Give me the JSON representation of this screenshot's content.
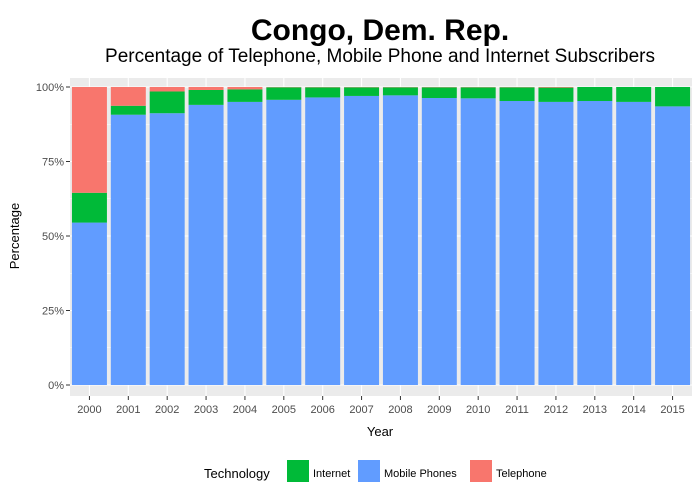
{
  "chart_data": {
    "type": "bar",
    "stacked": true,
    "title": "Congo, Dem. Rep.",
    "subtitle": "Percentage of Telephone, Mobile Phone and Internet Subscribers",
    "xlabel": "Year",
    "ylabel": "Percentage",
    "ylim": [
      0,
      100
    ],
    "yticks": [
      "0%",
      "25%",
      "50%",
      "75%",
      "100%"
    ],
    "ytick_values": [
      0,
      25,
      50,
      75,
      100
    ],
    "grid": true,
    "categories": [
      "2000",
      "2001",
      "2002",
      "2003",
      "2004",
      "2005",
      "2006",
      "2007",
      "2008",
      "2009",
      "2010",
      "2011",
      "2012",
      "2013",
      "2014",
      "2015"
    ],
    "series": [
      {
        "name": "Mobile Phones",
        "color": "#619CFF",
        "values": [
          54.5,
          90.7,
          91.2,
          94.0,
          95.0,
          95.7,
          96.5,
          97.0,
          97.2,
          96.3,
          96.2,
          95.3,
          95.0,
          95.3,
          95.0,
          93.5
        ]
      },
      {
        "name": "Internet",
        "color": "#00BA38",
        "values": [
          10.0,
          3.0,
          7.3,
          5.0,
          4.2,
          4.2,
          3.4,
          2.9,
          2.7,
          3.6,
          3.7,
          4.6,
          4.8,
          4.7,
          5.0,
          6.5
        ]
      },
      {
        "name": "Telephone",
        "color": "#F8766D",
        "values": [
          35.5,
          6.3,
          1.5,
          1.0,
          0.8,
          0.1,
          0.1,
          0.1,
          0.1,
          0.1,
          0.1,
          0.1,
          0.2,
          0.0,
          0.0,
          0.0
        ]
      }
    ],
    "legend": {
      "title": "Technology",
      "position": "bottom",
      "entries": [
        {
          "label": "Internet",
          "color": "#00BA38"
        },
        {
          "label": "Mobile Phones",
          "color": "#619CFF"
        },
        {
          "label": "Telephone",
          "color": "#F8766D"
        }
      ]
    }
  }
}
